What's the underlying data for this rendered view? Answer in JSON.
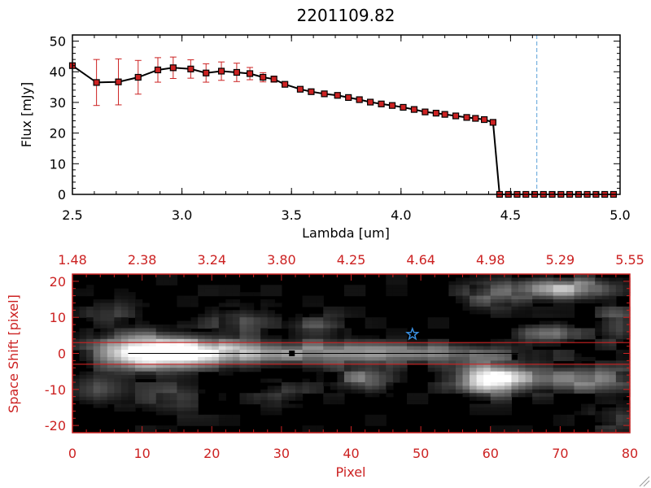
{
  "chart_data": [
    {
      "type": "line",
      "title": "2201109.82",
      "xlabel": "Lambda [um]",
      "ylabel": "Flux [mJy]",
      "xlim": [
        2.5,
        5.0
      ],
      "ylim": [
        0,
        52
      ],
      "x_ticks": [
        "2.5",
        "3.0",
        "3.5",
        "4.0",
        "4.5",
        "5.0"
      ],
      "y_ticks": [
        "0",
        "10",
        "20",
        "30",
        "40",
        "50"
      ],
      "marker_color": "#cc2222",
      "line_color": "#000000",
      "vline": {
        "x": 4.62,
        "color": "#5aa0d8",
        "style": "dashed"
      },
      "series": [
        {
          "points": [
            {
              "x": 2.5,
              "y": 42.0
            },
            {
              "x": 2.61,
              "y": 36.5,
              "err": 7.5
            },
            {
              "x": 2.71,
              "y": 36.7,
              "err": 7.5
            },
            {
              "x": 2.8,
              "y": 38.2,
              "err": 5.5
            },
            {
              "x": 2.89,
              "y": 40.6,
              "err": 4.0
            },
            {
              "x": 2.96,
              "y": 41.3,
              "err": 3.5
            },
            {
              "x": 3.04,
              "y": 40.9,
              "err": 3.0
            },
            {
              "x": 3.11,
              "y": 39.6,
              "err": 3.0
            },
            {
              "x": 3.18,
              "y": 40.2,
              "err": 3.0
            },
            {
              "x": 3.25,
              "y": 39.8,
              "err": 3.0
            },
            {
              "x": 3.31,
              "y": 39.4,
              "err": 2.0
            },
            {
              "x": 3.37,
              "y": 38.2,
              "err": 1.5
            },
            {
              "x": 3.42,
              "y": 37.6,
              "err": 1.0
            },
            {
              "x": 3.47,
              "y": 35.9
            },
            {
              "x": 3.54,
              "y": 34.3
            },
            {
              "x": 3.59,
              "y": 33.5
            },
            {
              "x": 3.65,
              "y": 32.8
            },
            {
              "x": 3.71,
              "y": 32.3
            },
            {
              "x": 3.76,
              "y": 31.6
            },
            {
              "x": 3.81,
              "y": 30.9
            },
            {
              "x": 3.86,
              "y": 30.1
            },
            {
              "x": 3.91,
              "y": 29.5
            },
            {
              "x": 3.96,
              "y": 29.0
            },
            {
              "x": 4.01,
              "y": 28.4
            },
            {
              "x": 4.06,
              "y": 27.7
            },
            {
              "x": 4.11,
              "y": 26.9
            },
            {
              "x": 4.16,
              "y": 26.5
            },
            {
              "x": 4.2,
              "y": 26.1
            },
            {
              "x": 4.25,
              "y": 25.6
            },
            {
              "x": 4.3,
              "y": 25.1
            },
            {
              "x": 4.34,
              "y": 24.8
            },
            {
              "x": 4.38,
              "y": 24.4
            },
            {
              "x": 4.42,
              "y": 23.5
            },
            {
              "x": 4.45,
              "y": 0.0
            },
            {
              "x": 4.49,
              "y": 0.0
            },
            {
              "x": 4.53,
              "y": 0.0
            },
            {
              "x": 4.57,
              "y": 0.0
            },
            {
              "x": 4.61,
              "y": 0.0
            },
            {
              "x": 4.65,
              "y": 0.0
            },
            {
              "x": 4.69,
              "y": 0.0
            },
            {
              "x": 4.73,
              "y": 0.0
            },
            {
              "x": 4.77,
              "y": 0.0
            },
            {
              "x": 4.81,
              "y": 0.0
            },
            {
              "x": 4.85,
              "y": 0.0
            },
            {
              "x": 4.89,
              "y": 0.0
            },
            {
              "x": 4.93,
              "y": 0.0
            },
            {
              "x": 4.97,
              "y": 0.0
            }
          ]
        }
      ]
    },
    {
      "type": "heatmap",
      "xlabel": "Pixel",
      "ylabel": "Space Shift [pixel]",
      "xlim": [
        0,
        80
      ],
      "ylim": [
        -22,
        22
      ],
      "x_ticks": [
        "0",
        "10",
        "20",
        "30",
        "40",
        "50",
        "60",
        "70",
        "80"
      ],
      "y_ticks": [
        "-20",
        "-10",
        "0",
        "10",
        "20"
      ],
      "top_ticks": [
        "1.48",
        "2.38",
        "3.24",
        "3.80",
        "4.25",
        "4.64",
        "4.98",
        "5.29",
        "5.55"
      ],
      "axis_color": "#cc2222",
      "extraction_band": [
        -3,
        3
      ],
      "markers": [
        {
          "kind": "square",
          "x": 31.5,
          "y": 0
        },
        {
          "kind": "square",
          "x": 63.5,
          "y": -1
        },
        {
          "kind": "star",
          "x": 48.8,
          "y": 5.3,
          "color": "#3a8fe0"
        }
      ],
      "blobs": [
        {
          "x": 10,
          "y": 0.5,
          "sx": 4.5,
          "sy": 3.5,
          "a": 0.95
        },
        {
          "x": 18,
          "y": 0.5,
          "sx": 5.0,
          "sy": 3.0,
          "a": 0.6
        },
        {
          "x": 30,
          "y": 0.0,
          "sx": 12.0,
          "sy": 2.2,
          "a": 0.5
        },
        {
          "x": 50,
          "y": 0.0,
          "sx": 10.0,
          "sy": 1.8,
          "a": 0.45
        },
        {
          "x": 60,
          "y": -7.0,
          "sx": 3.5,
          "sy": 3.0,
          "a": 0.95
        },
        {
          "x": 72,
          "y": -7.0,
          "sx": 7.0,
          "sy": 2.5,
          "a": 0.55
        },
        {
          "x": 42,
          "y": -7.0,
          "sx": 3.0,
          "sy": 2.5,
          "a": 0.45
        },
        {
          "x": 70,
          "y": 18.0,
          "sx": 5.0,
          "sy": 2.0,
          "a": 0.75
        },
        {
          "x": 68,
          "y": 5.5,
          "sx": 3.0,
          "sy": 2.0,
          "a": 0.55
        },
        {
          "x": 60,
          "y": 16.0,
          "sx": 3.0,
          "sy": 2.5,
          "a": 0.3
        },
        {
          "x": 3,
          "y": -10.0,
          "sx": 3.0,
          "sy": 3.0,
          "a": 0.35
        },
        {
          "x": 24,
          "y": 9.0,
          "sx": 3.0,
          "sy": 2.5,
          "a": 0.3
        },
        {
          "x": 35,
          "y": 7.0,
          "sx": 3.0,
          "sy": 2.5,
          "a": 0.3
        },
        {
          "x": 15,
          "y": -12.0,
          "sx": 4.0,
          "sy": 3.0,
          "a": 0.25
        },
        {
          "x": 30,
          "y": -11.0,
          "sx": 3.0,
          "sy": 2.5,
          "a": 0.25
        },
        {
          "x": 5,
          "y": 11.0,
          "sx": 3.0,
          "sy": 2.5,
          "a": 0.25
        },
        {
          "x": 78,
          "y": 8.0,
          "sx": 2.0,
          "sy": 4.0,
          "a": 0.35
        },
        {
          "x": 78,
          "y": -18.0,
          "sx": 3.0,
          "sy": 3.0,
          "a": 0.25
        }
      ]
    }
  ]
}
